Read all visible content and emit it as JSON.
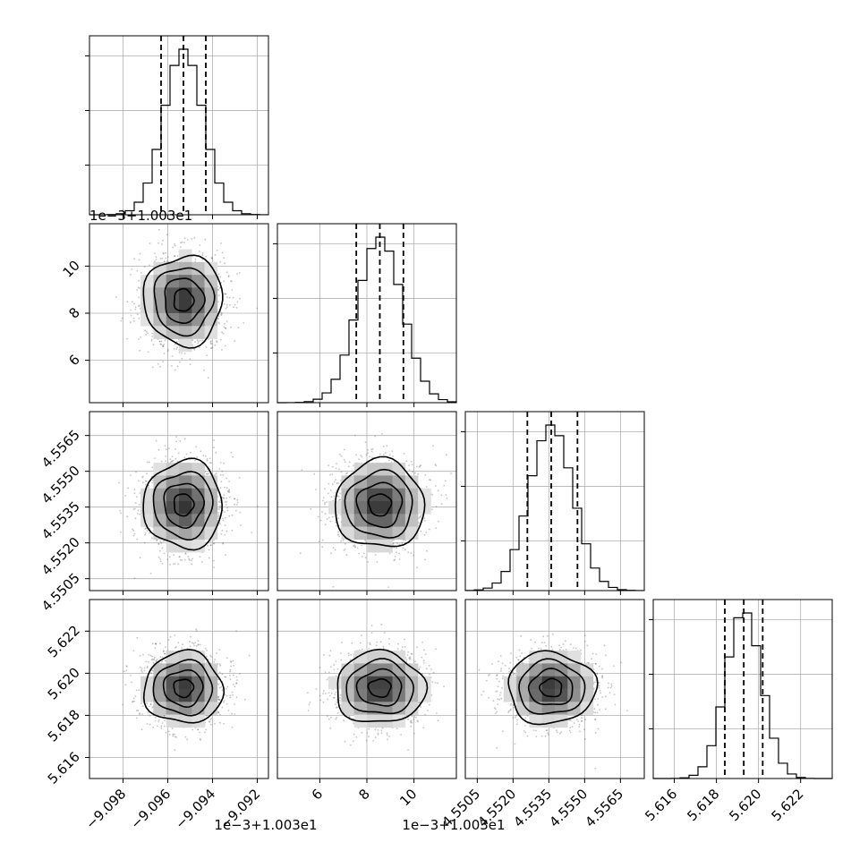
{
  "chart_data": {
    "type": "corner",
    "grid": true,
    "parameters": [
      {
        "offset_label": "1e−3+1.003e1",
        "ticks": [
          -9.098,
          -9.096,
          -9.094,
          -9.092
        ],
        "tick_labels": [
          "−9.098",
          "−9.096",
          "−9.094",
          "−9.092"
        ],
        "range": [
          -9.0995,
          -9.0915
        ],
        "mean": -9.0953,
        "std": 0.00088,
        "quantiles": [
          -9.0963,
          -9.0953,
          -9.0943
        ]
      },
      {
        "offset_label": "1e−3+1.003e1",
        "ticks": [
          6,
          8,
          10
        ],
        "tick_labels": [
          "6",
          "8",
          "10"
        ],
        "range": [
          4.2,
          11.8
        ],
        "mean": 8.55,
        "std": 0.95,
        "quantiles": [
          7.55,
          8.55,
          9.55
        ]
      },
      {
        "offset_label": "",
        "ticks": [
          4.5505,
          4.552,
          4.5535,
          4.555,
          4.5565
        ],
        "tick_labels": [
          "4.5505",
          "4.5520",
          "4.5535",
          "4.5550",
          "4.5565"
        ],
        "range": [
          4.55,
          4.5575
        ],
        "mean": 4.5536,
        "std": 0.00092,
        "quantiles": [
          4.5526,
          4.5536,
          4.5547
        ]
      },
      {
        "offset_label": "",
        "ticks": [
          5.616,
          5.618,
          5.62,
          5.622
        ],
        "tick_labels": [
          "5.616",
          "5.618",
          "5.620",
          "5.622"
        ],
        "range": [
          5.615,
          5.6235
        ],
        "mean": 5.6193,
        "std": 0.00085,
        "quantiles": [
          5.6184,
          5.6193,
          5.6202
        ]
      }
    ]
  }
}
